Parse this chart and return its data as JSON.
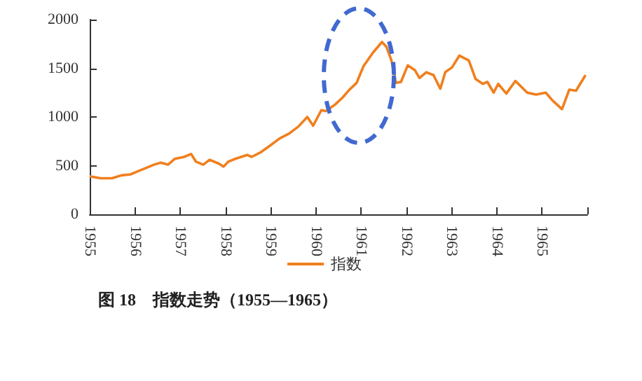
{
  "chart_data": {
    "type": "line",
    "title": "图 18　指数走势（1955—1965）",
    "x": [
      1955.0,
      1955.24,
      1955.49,
      1955.7,
      1955.9,
      1956.11,
      1956.42,
      1956.57,
      1956.73,
      1956.88,
      1957.09,
      1957.24,
      1957.35,
      1957.51,
      1957.65,
      1957.86,
      1957.96,
      1958.06,
      1958.22,
      1958.48,
      1958.58,
      1958.79,
      1959.0,
      1959.2,
      1959.41,
      1959.61,
      1959.81,
      1959.94,
      1960.12,
      1960.22,
      1960.43,
      1960.59,
      1960.74,
      1960.9,
      1961.05,
      1961.26,
      1961.46,
      1961.56,
      1961.67,
      1961.77,
      1961.88,
      1962.03,
      1962.19,
      1962.29,
      1962.44,
      1962.6,
      1962.75,
      1962.86,
      1963.01,
      1963.17,
      1963.38,
      1963.53,
      1963.69,
      1963.79,
      1963.93,
      1964.03,
      1964.21,
      1964.41,
      1964.67,
      1964.87,
      1965.08,
      1965.23,
      1965.44,
      1965.6,
      1965.75,
      1965.96
    ],
    "series": [
      {
        "name": "指数",
        "color": "#f07f1e",
        "values": [
          390,
          370,
          370,
          400,
          410,
          450,
          510,
          530,
          510,
          570,
          590,
          620,
          540,
          510,
          560,
          520,
          490,
          540,
          570,
          610,
          590,
          640,
          710,
          780,
          830,
          900,
          1000,
          910,
          1070,
          1060,
          1130,
          1200,
          1280,
          1350,
          1520,
          1660,
          1770,
          1720,
          1580,
          1350,
          1360,
          1530,
          1480,
          1400,
          1460,
          1430,
          1290,
          1460,
          1510,
          1630,
          1580,
          1390,
          1340,
          1360,
          1250,
          1340,
          1240,
          1370,
          1250,
          1230,
          1250,
          1170,
          1080,
          1280,
          1270,
          1430
        ]
      }
    ],
    "xlim": [
      1955,
      1966
    ],
    "xticks": [
      1955,
      1956,
      1957,
      1958,
      1959,
      1960,
      1961,
      1962,
      1963,
      1964,
      1965,
      {
        "value": 1966,
        "label": null
      }
    ],
    "ylim": [
      0,
      2000
    ],
    "yticks": [
      0,
      500,
      1000,
      1500,
      2000
    ],
    "grid": false,
    "legend": "bottom",
    "marker": "none",
    "line_style": "solid"
  }
}
